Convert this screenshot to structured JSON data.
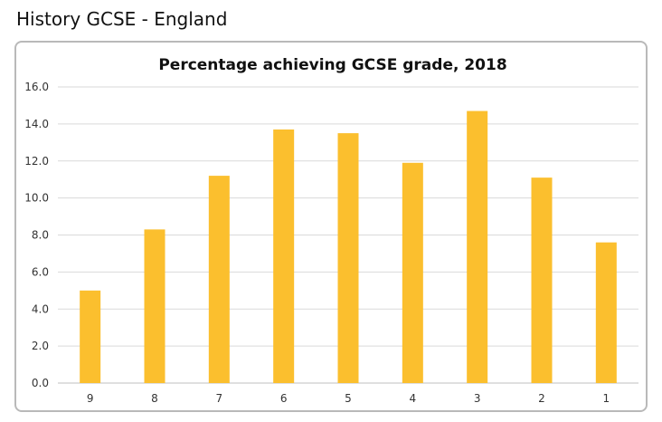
{
  "page": {
    "heading": "History GCSE - England"
  },
  "chart_data": {
    "type": "bar",
    "title": "Percentage achieving GCSE grade, 2018",
    "xlabel": "",
    "ylabel": "",
    "categories": [
      "9",
      "8",
      "7",
      "6",
      "5",
      "4",
      "3",
      "2",
      "1"
    ],
    "values": [
      5.0,
      8.3,
      11.2,
      13.7,
      13.5,
      11.9,
      14.7,
      11.1,
      7.6
    ],
    "ylim": [
      0,
      16
    ],
    "yticks": [
      "0.0",
      "2.0",
      "4.0",
      "6.0",
      "8.0",
      "10.0",
      "12.0",
      "14.0",
      "16.0"
    ],
    "grid": true,
    "legend": "none",
    "bar_color": "#FBBF2E"
  }
}
